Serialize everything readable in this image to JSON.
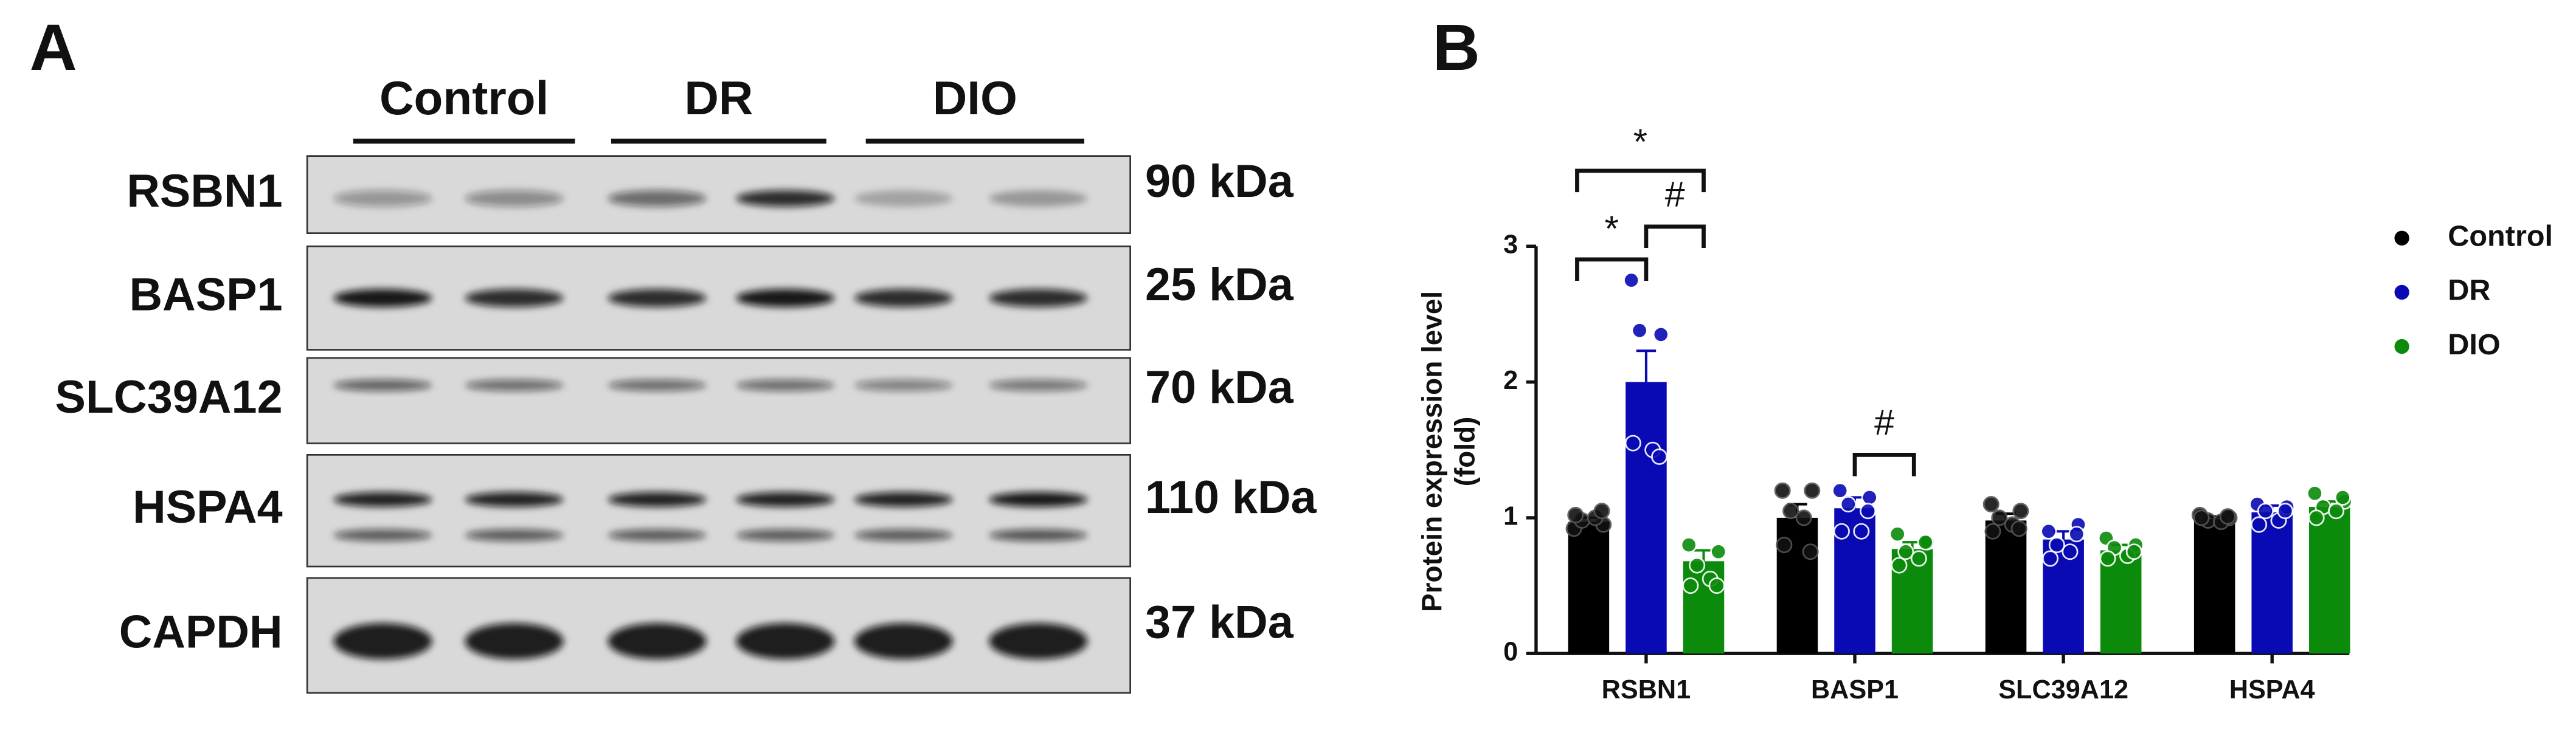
{
  "blot": {
    "panel_label": "A",
    "groups": [
      "Control",
      "DR",
      "DIO"
    ],
    "rows": [
      {
        "protein": "RSBN1",
        "size": "90 kDa"
      },
      {
        "protein": "BASP1",
        "size": "25 kDa"
      },
      {
        "protein": "SLC39A12",
        "size": "70 kDa"
      },
      {
        "protein": "HSPA4",
        "size": "110 kDa"
      },
      {
        "protein": "CAPDH",
        "size": "37 kDa"
      }
    ]
  },
  "chart_data": {
    "type": "bar",
    "panel_label": "B",
    "ylabel": [
      "Protein expression level",
      "(fold)"
    ],
    "categories": [
      "RSBN1",
      "BASP1",
      "SLC39A12",
      "HSPA4"
    ],
    "ylim": [
      0,
      3
    ],
    "yticks": [
      0,
      1,
      2,
      3
    ],
    "series": [
      {
        "name": "Control",
        "color": "#000000",
        "values": [
          0.97,
          1.0,
          0.98,
          0.99
        ],
        "errors": [
          0.03,
          0.1,
          0.05,
          0.02
        ],
        "points": [
          [
            0.92,
            0.95,
            0.98,
            1.0,
            1.02,
            1.05
          ],
          [
            1.2,
            1.2,
            1.05,
            1.0,
            0.8,
            0.75
          ],
          [
            1.1,
            1.05,
            1.0,
            0.95,
            0.9,
            0.92
          ],
          [
            1.02,
            1.0,
            0.98,
            0.97,
            1.0,
            1.01
          ]
        ]
      },
      {
        "name": "DR",
        "color": "#0a0ab4",
        "values": [
          2.0,
          1.07,
          0.84,
          1.04
        ],
        "errors": [
          0.23,
          0.08,
          0.06,
          0.05
        ],
        "points": [
          [
            2.75,
            2.35,
            2.38,
            1.5,
            1.55,
            1.45
          ],
          [
            1.2,
            1.15,
            1.1,
            0.9,
            0.9,
            1.05
          ],
          [
            0.9,
            0.95,
            0.8,
            0.75,
            0.7,
            0.88
          ],
          [
            1.1,
            1.08,
            1.05,
            0.98,
            0.95,
            1.05
          ]
        ]
      },
      {
        "name": "DIO",
        "color": "#0b8a0b",
        "values": [
          0.68,
          0.77,
          0.76,
          1.08
        ],
        "errors": [
          0.08,
          0.05,
          0.04,
          0.04
        ],
        "points": [
          [
            0.8,
            0.75,
            0.65,
            0.55,
            0.5,
            0.5
          ],
          [
            0.88,
            0.82,
            0.75,
            0.7,
            0.65,
            0.82
          ],
          [
            0.85,
            0.8,
            0.78,
            0.72,
            0.7,
            0.75
          ],
          [
            1.18,
            1.12,
            1.08,
            1.05,
            1.0,
            1.15
          ]
        ]
      }
    ],
    "annotations": [
      {
        "text": "*"
      },
      {
        "text": "#"
      },
      {
        "text": "*"
      },
      {
        "text": "#"
      }
    ]
  }
}
